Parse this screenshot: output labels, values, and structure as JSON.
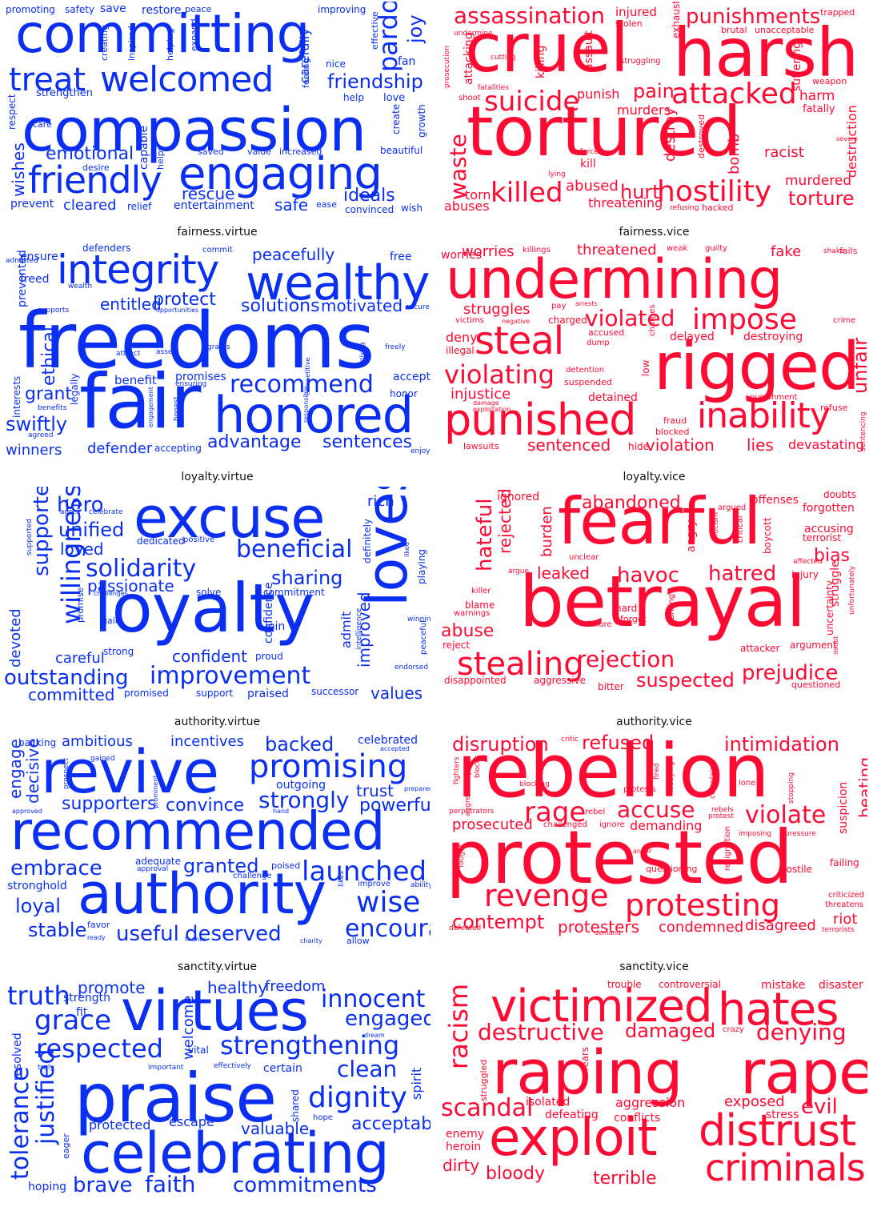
{
  "colors": {
    "virtue": "#0a2ff2",
    "vice": "#ff0a33"
  },
  "panels": [
    {
      "title": "",
      "tone": "virtue",
      "words": [
        "promoting",
        "safety",
        "save",
        "restore",
        "peace",
        "improving",
        "committing",
        "pardon",
        "joy",
        "effective",
        "treat",
        "welcomed",
        "carefully",
        "nice",
        "fan",
        "friendship",
        "strengthen",
        "help",
        "love",
        "respect",
        "compassion",
        "create",
        "growth",
        "care",
        "emotional",
        "capable",
        "helps",
        "beautiful",
        "wishes",
        "desire",
        "saved",
        "value",
        "increased",
        "friendly",
        "engaging",
        "rescue",
        "ideals",
        "prevent",
        "cleared",
        "relief",
        "entertainment",
        "safe",
        "ease",
        "convinced",
        "wish",
        "inspired",
        "creating",
        "helping",
        "expand",
        "feeling"
      ]
    },
    {
      "title": "",
      "tone": "vice",
      "words": [
        "assassination",
        "injured",
        "stolen",
        "exhausted",
        "punishments",
        "trapped",
        "brutal",
        "unacceptable",
        "undermine",
        "cruel",
        "harsh",
        "attacking",
        "assault",
        "cutting",
        "killing",
        "struggling",
        "suffering",
        "weapon",
        "prosecution",
        "fatalities",
        "shoot",
        "punish",
        "pain",
        "attacked",
        "harm",
        "fatally",
        "suicide",
        "murders",
        "tortured",
        "destroy",
        "destruction",
        "destroyed",
        "bomb",
        "racist",
        "severe",
        "forced",
        "kill",
        "waste",
        "lying",
        "killed",
        "abused",
        "hurt",
        "hostility",
        "murdered",
        "torture",
        "torn",
        "abuses",
        "threatening",
        "refusing",
        "hacked"
      ]
    },
    {
      "title": "fairness.virtue",
      "tone": "virtue",
      "words": [
        "ensure",
        "admitted",
        "defenders",
        "commit",
        "peacefully",
        "free",
        "integrity",
        "wealthy",
        "freed",
        "wealth",
        "prevented",
        "supports",
        "entitled",
        "protect",
        "opportunities",
        "solutions",
        "motivated",
        "secure",
        "freedoms",
        "ethical",
        "interests",
        "attract",
        "assets",
        "grants",
        "competitive",
        "responsible",
        "giving",
        "freely",
        "legally",
        "accept",
        "benefit",
        "promises",
        "ensuring",
        "recommend",
        "grant",
        "benefits",
        "honor",
        "swiftly",
        "agreed",
        "fair",
        "honored",
        "engagement",
        "honest",
        "winners",
        "defender",
        "accepting",
        "advantage",
        "sentences",
        "enjoy"
      ]
    },
    {
      "title": "fairness.vice",
      "tone": "vice",
      "words": [
        "worries",
        "killings",
        "threatened",
        "weak",
        "guilty",
        "fake",
        "shake",
        "fails",
        "undermining",
        "struggles",
        "pay",
        "arrests",
        "charges",
        "victims",
        "negative",
        "charged",
        "violated",
        "impose",
        "crime",
        "deny",
        "accused",
        "dump",
        "delayed",
        "destroying",
        "illegal",
        "steal",
        "rigged",
        "unfair",
        "low",
        "violating",
        "detention",
        "suspended",
        "injustice",
        "damage",
        "exploitation",
        "detained",
        "punishment",
        "refuse",
        "punished",
        "fraud",
        "blocked",
        "inability",
        "lawsuits",
        "sentenced",
        "hide",
        "violation",
        "lies",
        "devastating",
        "sentencing"
      ]
    },
    {
      "title": "loyalty.virtue",
      "tone": "virtue",
      "words": [
        "supporter",
        "hero",
        "agree",
        "celebrate",
        "excuse",
        "rich",
        "unified",
        "supported",
        "loved",
        "dedicated",
        "positive",
        "definitely",
        "advanced",
        "playing",
        "willingness",
        "beneficial",
        "liked",
        "solidarity",
        "passionate",
        "challenges",
        "solve",
        "sharing",
        "commitment",
        "devoted",
        "promise",
        "gain",
        "loyalty",
        "confidence",
        "join",
        "admit",
        "intelligence",
        "improved",
        "loves",
        "winning",
        "careful",
        "strong",
        "confident",
        "proud",
        "endorsed",
        "peaceful",
        "outstanding",
        "improvement",
        "committed",
        "promised",
        "support",
        "praised",
        "successor",
        "values"
      ]
    },
    {
      "title": "loyalty.vice",
      "tone": "vice",
      "words": [
        "ignored",
        "abandoned",
        "offenses",
        "doubts",
        "argued",
        "forgotten",
        "rejected",
        "hateful",
        "boycott",
        "accusing",
        "terrorist",
        "fearful",
        "burden",
        "angry",
        "criticism",
        "critical",
        "bias",
        "unclear",
        "argue",
        "leaked",
        "havoc",
        "hatred",
        "affected",
        "injury",
        "struggle",
        "unfortunately",
        "killer",
        "blame",
        "warnings",
        "hard",
        "forget",
        "betrayal",
        "uncertainty",
        "abuse",
        "failure",
        "warning",
        "attacker",
        "argument",
        "doubt",
        "reject",
        "stealing",
        "rejection",
        "prejudice",
        "disappointed",
        "aggressive",
        "bitter",
        "suspected",
        "questioned"
      ]
    },
    {
      "title": "authority.virtue",
      "tone": "virtue",
      "words": [
        "backing",
        "ambitious",
        "incentives",
        "backed",
        "celebrated",
        "accepted",
        "engage",
        "decisive",
        "gained",
        "revive",
        "promising",
        "prospect",
        "outgoing",
        "trust",
        "prepared",
        "supporters",
        "convince",
        "strongly",
        "powerful",
        "approved",
        "prominent",
        "hand",
        "recommended",
        "embrace",
        "adequate",
        "approval",
        "granted",
        "poised",
        "launched",
        "challenge",
        "stronghold",
        "improve",
        "ability",
        "loyal",
        "authority",
        "likes",
        "wise",
        "stable",
        "favor",
        "ready",
        "useful",
        "thanks",
        "deserved",
        "encouraged",
        "charity",
        "allow",
        "determination"
      ]
    },
    {
      "title": "authority.vice",
      "tone": "vice",
      "words": [
        "disruption",
        "critic",
        "refused",
        "intimidation",
        "fighters",
        "blocks",
        "blocking",
        "rebellion",
        "lobbying",
        "complaint",
        "lone",
        "fired",
        "suspicion",
        "beating",
        "protests",
        "stopping",
        "perpetrators",
        "aggressively",
        "rage",
        "rebel",
        "accuse",
        "rebels",
        "protest",
        "violate",
        "prosecuted",
        "challenged",
        "ignore",
        "demanding",
        "imposing",
        "pressure",
        "fought",
        "anger",
        "protested",
        "resignation",
        "questioning",
        "failing",
        "hostile",
        "revenge",
        "criticized",
        "protesting",
        "threatens",
        "contempt",
        "defeated",
        "protesters",
        "demand",
        "condemned",
        "disagreed",
        "riot",
        "terrorists"
      ]
    },
    {
      "title": "sanctity.virtue",
      "tone": "virtue",
      "words": [
        "promote",
        "healthy",
        "freedom",
        "truth",
        "strength",
        "innocent",
        "virtues",
        "engaged",
        "grace",
        "fit",
        "welcome",
        "dream",
        "resolved",
        "respected",
        "vital",
        "strengthening",
        "truly",
        "important",
        "effectively",
        "certain",
        "clean",
        "tolerance",
        "justified",
        "praise",
        "spirit",
        "dignity",
        "shared",
        "hope",
        "protected",
        "escape",
        "valuable",
        "acceptable",
        "eager",
        "celebrating",
        "hoping",
        "brave",
        "faith",
        "commitments"
      ]
    },
    {
      "title": "sanctity.vice",
      "tone": "vice",
      "words": [
        "trouble",
        "controversial",
        "mistake",
        "disaster",
        "victimized",
        "hates",
        "racism",
        "destructive",
        "damaged",
        "crazy",
        "denying",
        "fears",
        "struggled",
        "raping",
        "rape",
        "scandal",
        "isolated",
        "aggression",
        "exposed",
        "stress",
        "evil",
        "defeating",
        "conflicts",
        "enemy",
        "heroin",
        "exploit",
        "distrust",
        "dirty",
        "bloody",
        "terrible",
        "criminals"
      ]
    }
  ]
}
